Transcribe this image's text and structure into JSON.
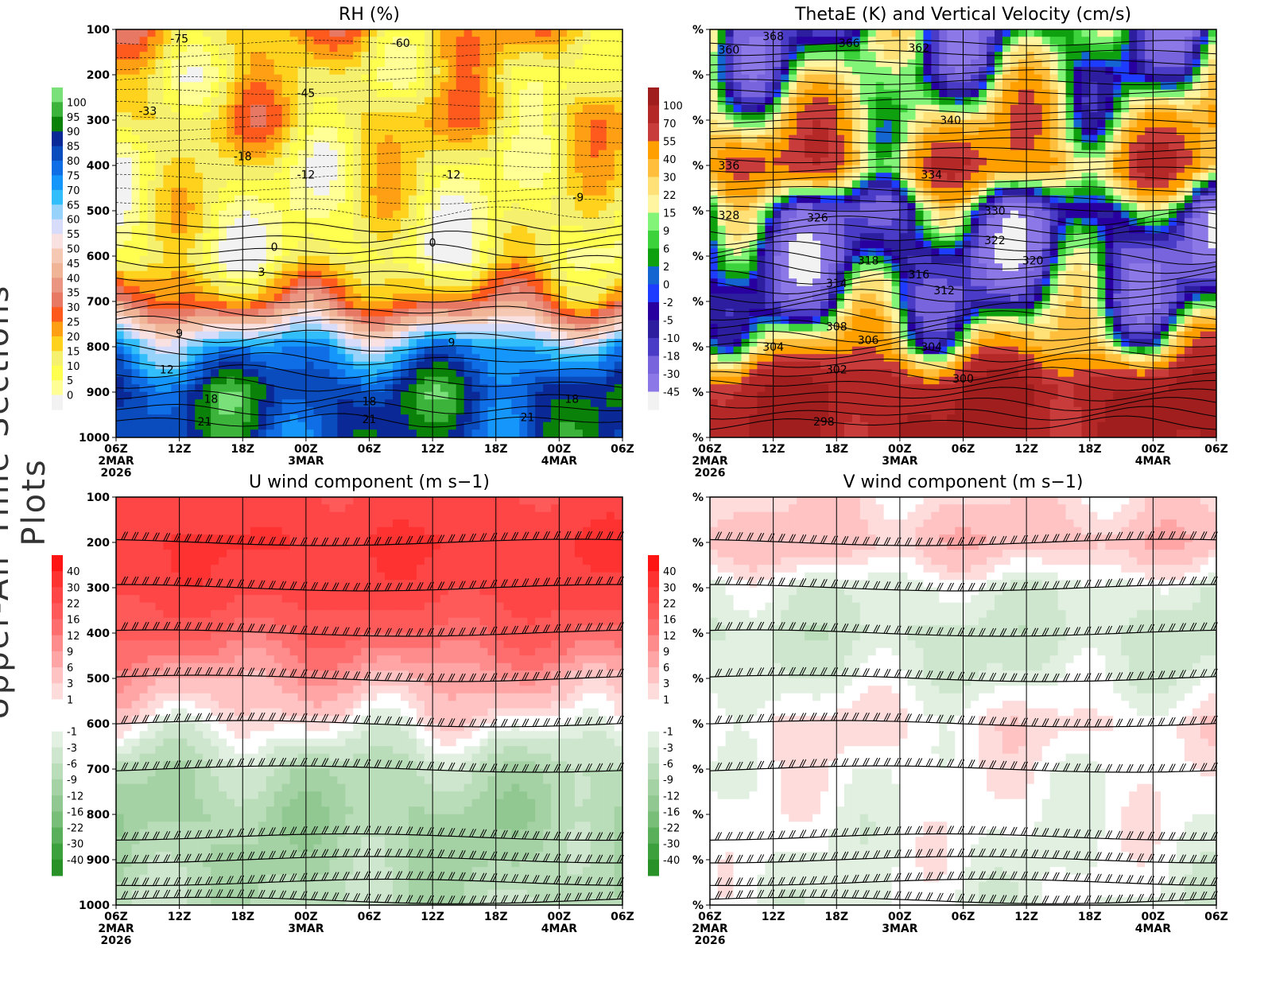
{
  "side_title": "Upper-Air Time Sections Plots",
  "chart_data": [
    {
      "type": "heatmap",
      "id": "rh",
      "title": "RH (%)",
      "ylabel_ticks": [
        "100",
        "200",
        "300",
        "400",
        "500",
        "600",
        "700",
        "800",
        "900",
        "1000"
      ],
      "x_ticks": [
        "06Z",
        "12Z",
        "18Z",
        "00Z",
        "06Z",
        "12Z",
        "18Z",
        "00Z",
        "06Z"
      ],
      "x_dates": {
        "0": "2MAR",
        "3": "3MAR",
        "7": "4MAR"
      },
      "x_year": "2026",
      "levels": [
        "100",
        "95",
        "90",
        "85",
        "80",
        "75",
        "70",
        "65",
        "60",
        "55",
        "50",
        "45",
        "40",
        "35",
        "30",
        "25",
        "20",
        "15",
        "10",
        "5",
        "0"
      ],
      "colors": [
        "#7ae07a",
        "#3cb43c",
        "#0a820a",
        "#0a2896",
        "#0a4bbe",
        "#0f6ee6",
        "#1496fa",
        "#32befa",
        "#96d2fa",
        "#d7dcfa",
        "#fae1e1",
        "#f5c8b4",
        "#f0b496",
        "#eb9682",
        "#e67864",
        "#ff5a1e",
        "#ffa014",
        "#ffd21e",
        "#f5f06e",
        "#ffff50",
        "#ffff96",
        "#f2f2f2"
      ],
      "profile": [
        20,
        12,
        18,
        10,
        8,
        6,
        28,
        70,
        88,
        85
      ],
      "variation": 14,
      "contour_labels": [
        {
          "t": 1,
          "p": 120,
          "v": "-75"
        },
        {
          "t": 3,
          "p": 240,
          "v": "-45"
        },
        {
          "t": 4.5,
          "p": 130,
          "v": "-60"
        },
        {
          "t": 0.5,
          "p": 280,
          "v": "-33"
        },
        {
          "t": 2,
          "p": 380,
          "v": "-18"
        },
        {
          "t": 3,
          "p": 420,
          "v": "-12"
        },
        {
          "t": 5.3,
          "p": 420,
          "v": "-12"
        },
        {
          "t": 7.3,
          "p": 470,
          "v": "-9"
        },
        {
          "t": 2.5,
          "p": 580,
          "v": "0"
        },
        {
          "t": 5,
          "p": 570,
          "v": "0"
        },
        {
          "t": 2.3,
          "p": 635,
          "v": "3"
        },
        {
          "t": 1,
          "p": 770,
          "v": "9"
        },
        {
          "t": 5.3,
          "p": 790,
          "v": "9"
        },
        {
          "t": 0.8,
          "p": 850,
          "v": "12"
        },
        {
          "t": 1.5,
          "p": 915,
          "v": "18"
        },
        {
          "t": 4,
          "p": 920,
          "v": "18"
        },
        {
          "t": 7.2,
          "p": 915,
          "v": "18"
        },
        {
          "t": 1.4,
          "p": 965,
          "v": "21"
        },
        {
          "t": 4,
          "p": 960,
          "v": "21"
        },
        {
          "t": 6.5,
          "p": 955,
          "v": "21"
        }
      ]
    },
    {
      "type": "heatmap",
      "id": "thetae",
      "title": "ThetaE (K) and Vertical Velocity (cm/s)",
      "ylabel_ticks": [
        "%",
        "%",
        "%",
        "%",
        "%",
        "%",
        "%",
        "%",
        "%",
        "%"
      ],
      "x_ticks": [
        "06Z",
        "12Z",
        "18Z",
        "00Z",
        "06Z",
        "12Z",
        "18Z",
        "00Z",
        "06Z"
      ],
      "x_dates": {
        "0": "2MAR",
        "3": "3MAR",
        "7": "4MAR"
      },
      "x_year": "2026",
      "levels": [
        "100",
        "70",
        "55",
        "40",
        "30",
        "22",
        "15",
        "9",
        "6",
        "2",
        "0",
        "-2",
        "-5",
        "-10",
        "-18",
        "-30",
        "-45"
      ],
      "colors": [
        "#a01e1e",
        "#b42828",
        "#c83c3c",
        "#ffa000",
        "#ffbe3c",
        "#ffe178",
        "#fff5a0",
        "#82f578",
        "#3cd23c",
        "#0fa00f",
        "#1464d2",
        "#1e3cff",
        "#2800a0",
        "#2d1ea0",
        "#4b3cc8",
        "#7864dc",
        "#8c78e6",
        "#f2f2f2"
      ],
      "profile": [
        -5,
        6,
        30,
        50,
        -10,
        -18,
        -5,
        30,
        100,
        100
      ],
      "variation": 40,
      "contour_labels": [
        {
          "t": 0.3,
          "p": 145,
          "v": "360"
        },
        {
          "t": 1,
          "p": 115,
          "v": "368"
        },
        {
          "t": 2.2,
          "p": 130,
          "v": "366"
        },
        {
          "t": 3.3,
          "p": 140,
          "v": "362"
        },
        {
          "t": 3.8,
          "p": 300,
          "v": "340"
        },
        {
          "t": 3.5,
          "p": 420,
          "v": "334"
        },
        {
          "t": 4.5,
          "p": 500,
          "v": "330"
        },
        {
          "t": 0.3,
          "p": 400,
          "v": "336"
        },
        {
          "t": 0.3,
          "p": 510,
          "v": "328"
        },
        {
          "t": 1.7,
          "p": 515,
          "v": "326"
        },
        {
          "t": 4.5,
          "p": 565,
          "v": "322"
        },
        {
          "t": 2.5,
          "p": 610,
          "v": "318"
        },
        {
          "t": 3.3,
          "p": 640,
          "v": "316"
        },
        {
          "t": 5.1,
          "p": 610,
          "v": "320"
        },
        {
          "t": 2,
          "p": 660,
          "v": "314"
        },
        {
          "t": 3.7,
          "p": 675,
          "v": "312"
        },
        {
          "t": 2,
          "p": 755,
          "v": "308"
        },
        {
          "t": 2.5,
          "p": 785,
          "v": "306"
        },
        {
          "t": 1,
          "p": 800,
          "v": "304"
        },
        {
          "t": 3.5,
          "p": 800,
          "v": "304"
        },
        {
          "t": 2,
          "p": 850,
          "v": "302"
        },
        {
          "t": 4,
          "p": 870,
          "v": "300"
        },
        {
          "t": 1.8,
          "p": 965,
          "v": "298"
        }
      ]
    },
    {
      "type": "heatmap",
      "id": "u",
      "title": "U wind component (m s−1)",
      "ylabel_ticks": [
        "100",
        "200",
        "300",
        "400",
        "500",
        "600",
        "700",
        "800",
        "900",
        "1000"
      ],
      "x_ticks": [
        "06Z",
        "12Z",
        "18Z",
        "00Z",
        "06Z",
        "12Z",
        "18Z",
        "00Z",
        "06Z"
      ],
      "x_dates": {
        "0": "2MAR",
        "3": "3MAR",
        "7": "4MAR"
      },
      "x_year": "2026",
      "levels": [
        "40",
        "30",
        "22",
        "16",
        "12",
        "9",
        "6",
        "3",
        "1",
        "",
        "-1",
        "-3",
        "-6",
        "-9",
        "-12",
        "-16",
        "-22",
        "-30",
        "-40"
      ],
      "colors": [
        "#ff1414",
        "#ff3232",
        "#ff4646",
        "#ff5a5a",
        "#ff6e6e",
        "#ff8c8c",
        "#ffa5a5",
        "#ffc3c3",
        "#ffdcdc",
        "#ffffff",
        "#ffffff",
        "#e1f0e1",
        "#cde6cd",
        "#b9dcb9",
        "#a5d2a5",
        "#91c891",
        "#78be78",
        "#5aaf5a",
        "#3ca03c",
        "#289128"
      ],
      "profile": [
        24,
        30,
        26,
        16,
        7,
        0.5,
        -7,
        -10,
        -9,
        -7
      ],
      "variation": 4,
      "barb_levels": [
        200,
        300,
        400,
        500,
        600,
        700,
        850,
        900,
        950,
        990
      ]
    },
    {
      "type": "heatmap",
      "id": "v",
      "title": "V wind component (m s−1)",
      "ylabel_ticks": [
        "%",
        "%",
        "%",
        "%",
        "%",
        "%",
        "%",
        "%",
        "%",
        "%"
      ],
      "x_ticks": [
        "06Z",
        "12Z",
        "18Z",
        "00Z",
        "06Z",
        "12Z",
        "18Z",
        "00Z",
        "06Z"
      ],
      "x_dates": {
        "0": "2MAR",
        "3": "3MAR",
        "7": "4MAR"
      },
      "x_year": "2026",
      "levels": [
        "40",
        "30",
        "22",
        "16",
        "12",
        "9",
        "6",
        "3",
        "1",
        "",
        "-1",
        "-3",
        "-6",
        "-9",
        "-12",
        "-16",
        "-22",
        "-30",
        "-40"
      ],
      "colors": [
        "#ff1414",
        "#ff3232",
        "#ff4646",
        "#ff5a5a",
        "#ff6e6e",
        "#ff8c8c",
        "#ffa5a5",
        "#ffc3c3",
        "#ffdcdc",
        "#ffffff",
        "#ffffff",
        "#e1f0e1",
        "#cde6cd",
        "#b9dcb9",
        "#a5d2a5",
        "#91c891",
        "#78be78",
        "#5aaf5a",
        "#3ca03c",
        "#289128"
      ],
      "profile": [
        2,
        5,
        -2,
        -4,
        -2,
        1.5,
        0,
        -0.5,
        -1,
        -1.5
      ],
      "variation": 2.5,
      "barb_levels": [
        200,
        300,
        400,
        500,
        600,
        700,
        850,
        900,
        950,
        990
      ]
    }
  ]
}
